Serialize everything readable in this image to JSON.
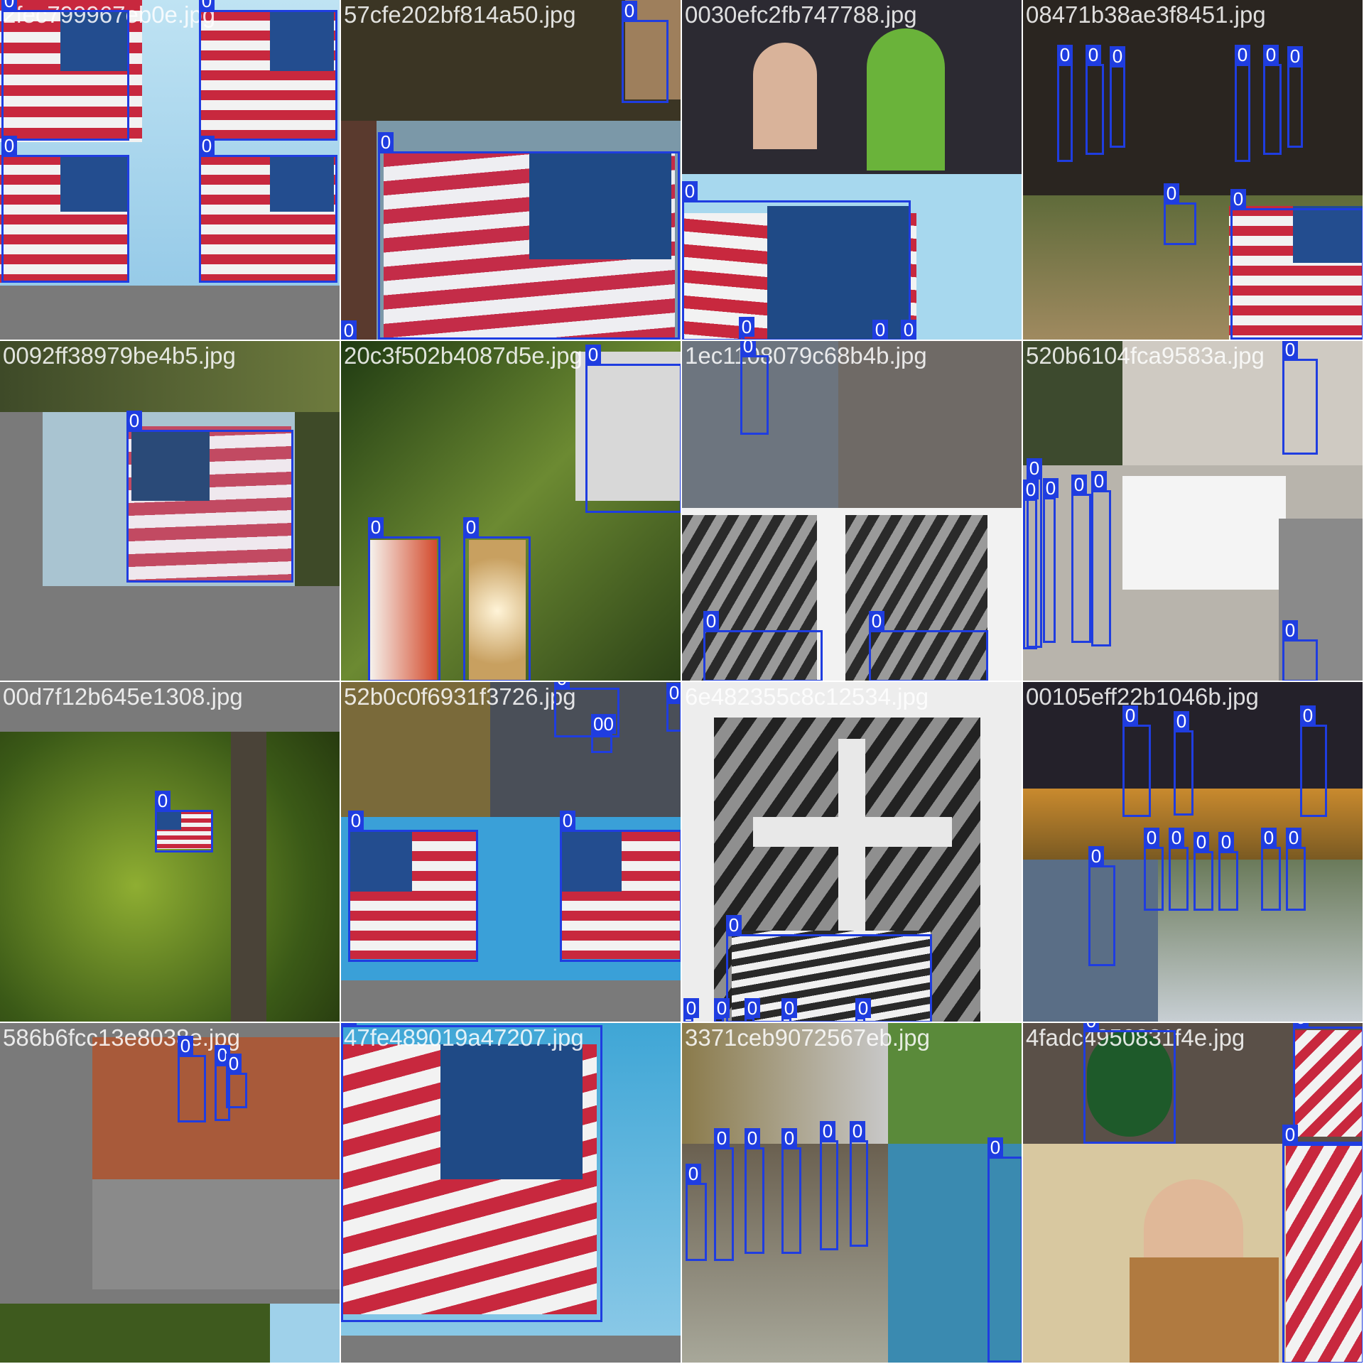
{
  "theme": {
    "box_color": "#1f3de0",
    "label_text_color": "#ffffff",
    "pad_color": "#7a7a7a"
  },
  "tiles": [
    {
      "filename": "2fec799967eb0e.jpg",
      "bg": "flag-sky",
      "boxes": [
        {
          "label": "0"
        },
        {
          "label": "0"
        },
        {
          "label": "0"
        },
        {
          "label": "0"
        }
      ]
    },
    {
      "filename": "57cfe202bf814a50.jpg",
      "bg": "flag-sky",
      "boxes": [
        {
          "label": "0"
        },
        {
          "label": "0"
        },
        {
          "label": "0"
        }
      ]
    },
    {
      "filename": "0030efc2fb747788.jpg",
      "bg": "crowd",
      "boxes": [
        {
          "label": "0"
        },
        {
          "label": "0"
        },
        {
          "label": "0"
        },
        {
          "label": "0"
        }
      ]
    },
    {
      "filename": "08471b38ae3f8451.jpg",
      "bg": "stage",
      "boxes": [
        {
          "label": "0"
        },
        {
          "label": "0"
        },
        {
          "label": "0"
        },
        {
          "label": "0"
        },
        {
          "label": "0"
        },
        {
          "label": "0"
        },
        {
          "label": "0"
        },
        {
          "label": "0"
        }
      ]
    },
    {
      "filename": "0092ff38979be4b5.jpg",
      "bg": "flag-sky",
      "boxes": [
        {
          "label": "0"
        }
      ]
    },
    {
      "filename": "20c3f502b4087d5e.jpg",
      "bg": "forest",
      "boxes": [
        {
          "label": "0"
        },
        {
          "label": "0"
        },
        {
          "label": "0"
        }
      ]
    },
    {
      "filename": "1ec1108079c68b4b.jpg",
      "bg": "cross",
      "boxes": [
        {
          "label": "0"
        },
        {
          "label": "0"
        },
        {
          "label": "0"
        }
      ]
    },
    {
      "filename": "520b6104fca9583a.jpg",
      "bg": "street",
      "boxes": [
        {
          "label": "0"
        },
        {
          "label": "0"
        },
        {
          "label": "0"
        },
        {
          "label": "0"
        },
        {
          "label": "0"
        },
        {
          "label": "0"
        },
        {
          "label": "0"
        }
      ]
    },
    {
      "filename": "00d7f12b645e1308.jpg",
      "bg": "forest",
      "boxes": [
        {
          "label": "0"
        }
      ]
    },
    {
      "filename": "52b0c0f6931f3726.jpg",
      "bg": "parade",
      "boxes": [
        {
          "label": "0"
        },
        {
          "label": "00"
        },
        {
          "label": "0"
        },
        {
          "label": "0"
        },
        {
          "label": "0"
        }
      ]
    },
    {
      "filename": "6e482355c8c12534.jpg",
      "bg": "cross",
      "boxes": [
        {
          "label": "0"
        },
        {
          "label": "0"
        },
        {
          "label": "0"
        },
        {
          "label": "0"
        },
        {
          "label": "0"
        },
        {
          "label": "0"
        }
      ]
    },
    {
      "filename": "00105eff22b1046b.jpg",
      "bg": "stage",
      "boxes": [
        {
          "label": "0"
        },
        {
          "label": "0"
        },
        {
          "label": "0"
        },
        {
          "label": "0"
        },
        {
          "label": "0"
        },
        {
          "label": "0"
        },
        {
          "label": "0"
        },
        {
          "label": "0"
        },
        {
          "label": "0"
        },
        {
          "label": "0"
        }
      ]
    },
    {
      "filename": "586b6fcc13e8038e.jpg",
      "bg": "street",
      "boxes": [
        {
          "label": "0"
        },
        {
          "label": "0"
        },
        {
          "label": "0"
        }
      ]
    },
    {
      "filename": "47fe489019a47207.jpg",
      "bg": "flag-sky",
      "boxes": [
        {
          "label": "0"
        }
      ]
    },
    {
      "filename": "3371ceb9072567eb.jpg",
      "bg": "crowd",
      "boxes": [
        {
          "label": "0"
        },
        {
          "label": "0"
        },
        {
          "label": "0"
        },
        {
          "label": "0"
        },
        {
          "label": "0"
        },
        {
          "label": "0"
        },
        {
          "label": "0"
        }
      ]
    },
    {
      "filename": "4fadc4950831f4e.jpg",
      "bg": "podium",
      "boxes": [
        {
          "label": "0"
        },
        {
          "label": "0"
        },
        {
          "label": "0"
        }
      ]
    }
  ]
}
